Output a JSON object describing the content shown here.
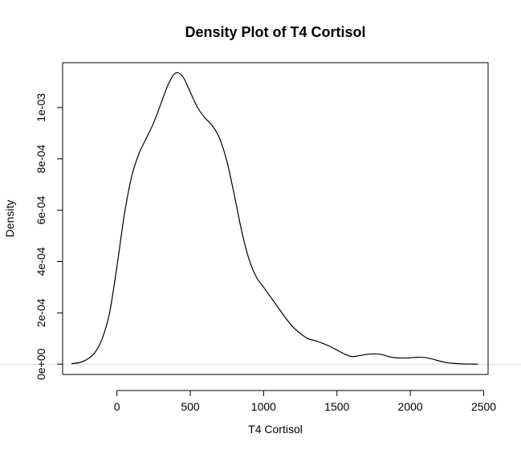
{
  "chart_data": {
    "type": "line",
    "title": "Density Plot of T4 Cortisol",
    "xlabel": "T4 Cortisol",
    "ylabel": "Density",
    "xlim": [
      -370,
      2530
    ],
    "ylim": [
      -4e-05,
      0.001175
    ],
    "x_ticks": [
      {
        "value": 0,
        "label": "0"
      },
      {
        "value": 500,
        "label": "500"
      },
      {
        "value": 1000,
        "label": "1000"
      },
      {
        "value": 1500,
        "label": "1500"
      },
      {
        "value": 2000,
        "label": "2000"
      },
      {
        "value": 2500,
        "label": "2500"
      }
    ],
    "y_ticks": [
      {
        "value": 0,
        "label": "0e+00"
      },
      {
        "value": 0.0002,
        "label": "2e-04"
      },
      {
        "value": 0.0004,
        "label": "4e-04"
      },
      {
        "value": 0.0006,
        "label": "6e-04"
      },
      {
        "value": 0.0008,
        "label": "8e-04"
      },
      {
        "value": 0.001,
        "label": "1e-03"
      }
    ],
    "grid": false,
    "legend": "none",
    "baseline_y": 0,
    "series": [
      {
        "color": "#000000",
        "x": [
          -310,
          -250,
          -200,
          -150,
          -100,
          -50,
          0,
          50,
          100,
          150,
          200,
          250,
          300,
          350,
          400,
          450,
          500,
          550,
          600,
          650,
          700,
          750,
          800,
          850,
          900,
          950,
          1000,
          1050,
          1100,
          1150,
          1200,
          1250,
          1300,
          1350,
          1400,
          1450,
          1500,
          1550,
          1600,
          1650,
          1700,
          1750,
          1800,
          1850,
          1900,
          1950,
          2000,
          2050,
          2100,
          2150,
          2200,
          2250,
          2300,
          2350,
          2400,
          2460
        ],
        "y": [
          2e-06,
          7e-06,
          2e-05,
          4.5e-05,
          0.0001,
          0.0002,
          0.00038,
          0.00058,
          0.00073,
          0.00082,
          0.00088,
          0.00094,
          0.001015,
          0.00109,
          0.001135,
          0.00112,
          0.00106,
          0.001,
          0.00096,
          0.00093,
          0.00088,
          0.00079,
          0.00066,
          0.00052,
          0.00041,
          0.00034,
          0.0003,
          0.00026,
          0.00022,
          0.00018,
          0.000145,
          0.00012,
          0.0001,
          9.2e-05,
          8.2e-05,
          7e-05,
          5.5e-05,
          4e-05,
          3e-05,
          3.3e-05,
          3.8e-05,
          4e-05,
          3.8e-05,
          3e-05,
          2.5e-05,
          2.4e-05,
          2.5e-05,
          2.7e-05,
          2.6e-05,
          2e-05,
          1.2e-05,
          6e-06,
          3e-06,
          1e-06,
          5e-07,
          0.0
        ]
      }
    ]
  }
}
